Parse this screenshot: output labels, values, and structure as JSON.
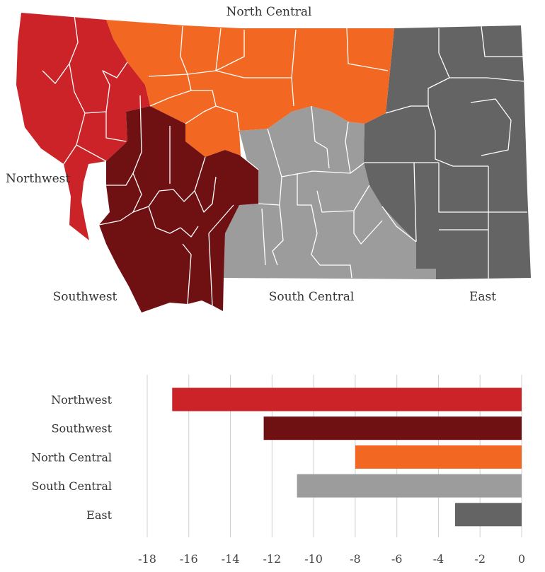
{
  "map": {
    "regions": [
      {
        "key": "northwest",
        "label": "Northwest",
        "color": "#cb2328"
      },
      {
        "key": "southwest",
        "label": "Southwest",
        "color": "#6f1013"
      },
      {
        "key": "north_central",
        "label": "North Central",
        "color": "#f26722"
      },
      {
        "key": "south_central",
        "label": "South Central",
        "color": "#9c9c9c"
      },
      {
        "key": "east",
        "label": "East",
        "color": "#646464"
      }
    ]
  },
  "chart_data": {
    "type": "bar",
    "orientation": "horizontal",
    "categories": [
      "Northwest",
      "Southwest",
      "North Central",
      "South Central",
      "East"
    ],
    "values": [
      -16.8,
      -12.4,
      -8.0,
      -10.8,
      -3.2
    ],
    "colors": [
      "#cb2328",
      "#6f1013",
      "#f26722",
      "#9c9c9c",
      "#646464"
    ],
    "xlim": [
      -18,
      0
    ],
    "xticks": [
      "-18",
      "-16",
      "-14",
      "-12",
      "-10",
      "-8",
      "-6",
      "-4",
      "-2",
      "0"
    ],
    "grid": "vertical",
    "title": "",
    "xlabel": "",
    "ylabel": ""
  }
}
